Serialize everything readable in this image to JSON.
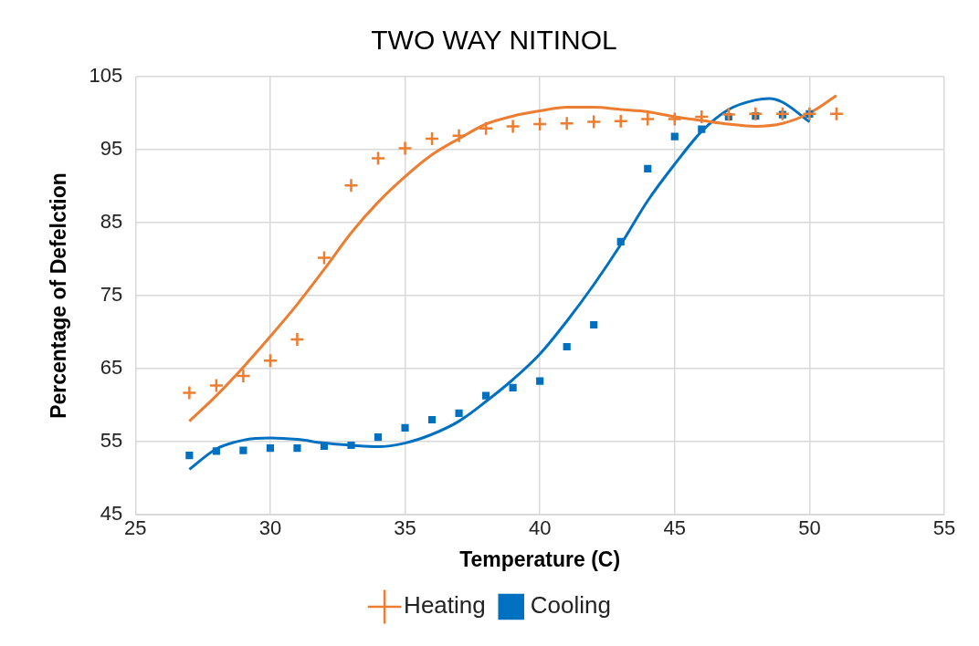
{
  "chart_data": {
    "type": "scatter",
    "title": "TWO WAY NITINOL",
    "xlabel": "Temperature (C)",
    "ylabel": "Percentage of Defelction",
    "xlim": [
      25,
      55
    ],
    "xticks": [
      25,
      30,
      35,
      40,
      45,
      50,
      55
    ],
    "ylim": [
      45,
      105
    ],
    "yticks": [
      45,
      55,
      65,
      75,
      85,
      95,
      105
    ],
    "grid": true,
    "legend": "bottom",
    "series": [
      {
        "name": "Heating",
        "color": "#ed7d31",
        "marker": "cross",
        "x": [
          27,
          28,
          29,
          30,
          31,
          32,
          33,
          34,
          35,
          36,
          37,
          38,
          39,
          40,
          41,
          42,
          43,
          44,
          45,
          46,
          47,
          48,
          49,
          50,
          51
        ],
        "values": [
          61.7,
          62.7,
          64.0,
          66.1,
          69.0,
          80.2,
          90.1,
          93.8,
          95.2,
          96.5,
          96.9,
          97.9,
          98.2,
          98.5,
          98.6,
          98.8,
          98.9,
          99.2,
          99.2,
          99.5,
          99.8,
          99.9,
          99.9,
          99.9,
          99.9
        ]
      },
      {
        "name": "Cooling",
        "color": "#0070c0",
        "marker": "square",
        "x": [
          27,
          28,
          29,
          30,
          31,
          32,
          33,
          34,
          35,
          36,
          37,
          38,
          39,
          40,
          41,
          42,
          43,
          44,
          45,
          46,
          47,
          48,
          49,
          50
        ],
        "values": [
          53.1,
          53.7,
          53.8,
          54.1,
          54.1,
          54.4,
          54.5,
          55.6,
          56.9,
          58.0,
          58.9,
          61.3,
          62.4,
          63.3,
          68.0,
          71.0,
          82.4,
          92.4,
          96.8,
          97.8,
          99.5,
          99.6,
          99.8,
          99.9
        ]
      },
      {
        "type": "line",
        "color": "#ed7d31",
        "marker": "none",
        "x": [
          27,
          28,
          29,
          30,
          31,
          32,
          33,
          34,
          35,
          36,
          37,
          38,
          39,
          40,
          41,
          42,
          43,
          44,
          45,
          46,
          47,
          48,
          49,
          50,
          51
        ],
        "values": [
          57.8,
          61.3,
          65.2,
          69.4,
          73.8,
          78.6,
          83.6,
          87.8,
          91.3,
          94.3,
          96.5,
          98.5,
          99.6,
          100.3,
          100.8,
          100.8,
          100.5,
          100.2,
          99.5,
          99,
          98.5,
          98.2,
          98.6,
          100,
          102.4
        ]
      },
      {
        "type": "line",
        "color": "#0070c0",
        "marker": "none",
        "x": [
          27,
          28,
          29,
          30,
          31,
          32,
          33,
          34,
          35,
          36,
          37,
          38,
          39,
          40,
          41,
          42,
          43,
          44,
          45,
          46,
          47,
          48,
          48.5,
          49,
          50
        ],
        "values": [
          51.2,
          54,
          55.2,
          55.5,
          55.3,
          54.8,
          54.5,
          54.3,
          54.8,
          56,
          57.8,
          60.5,
          63.5,
          67,
          71.5,
          76.5,
          82,
          88,
          93,
          97.5,
          100.5,
          101.8,
          102,
          101.5,
          98.8
        ]
      }
    ]
  }
}
